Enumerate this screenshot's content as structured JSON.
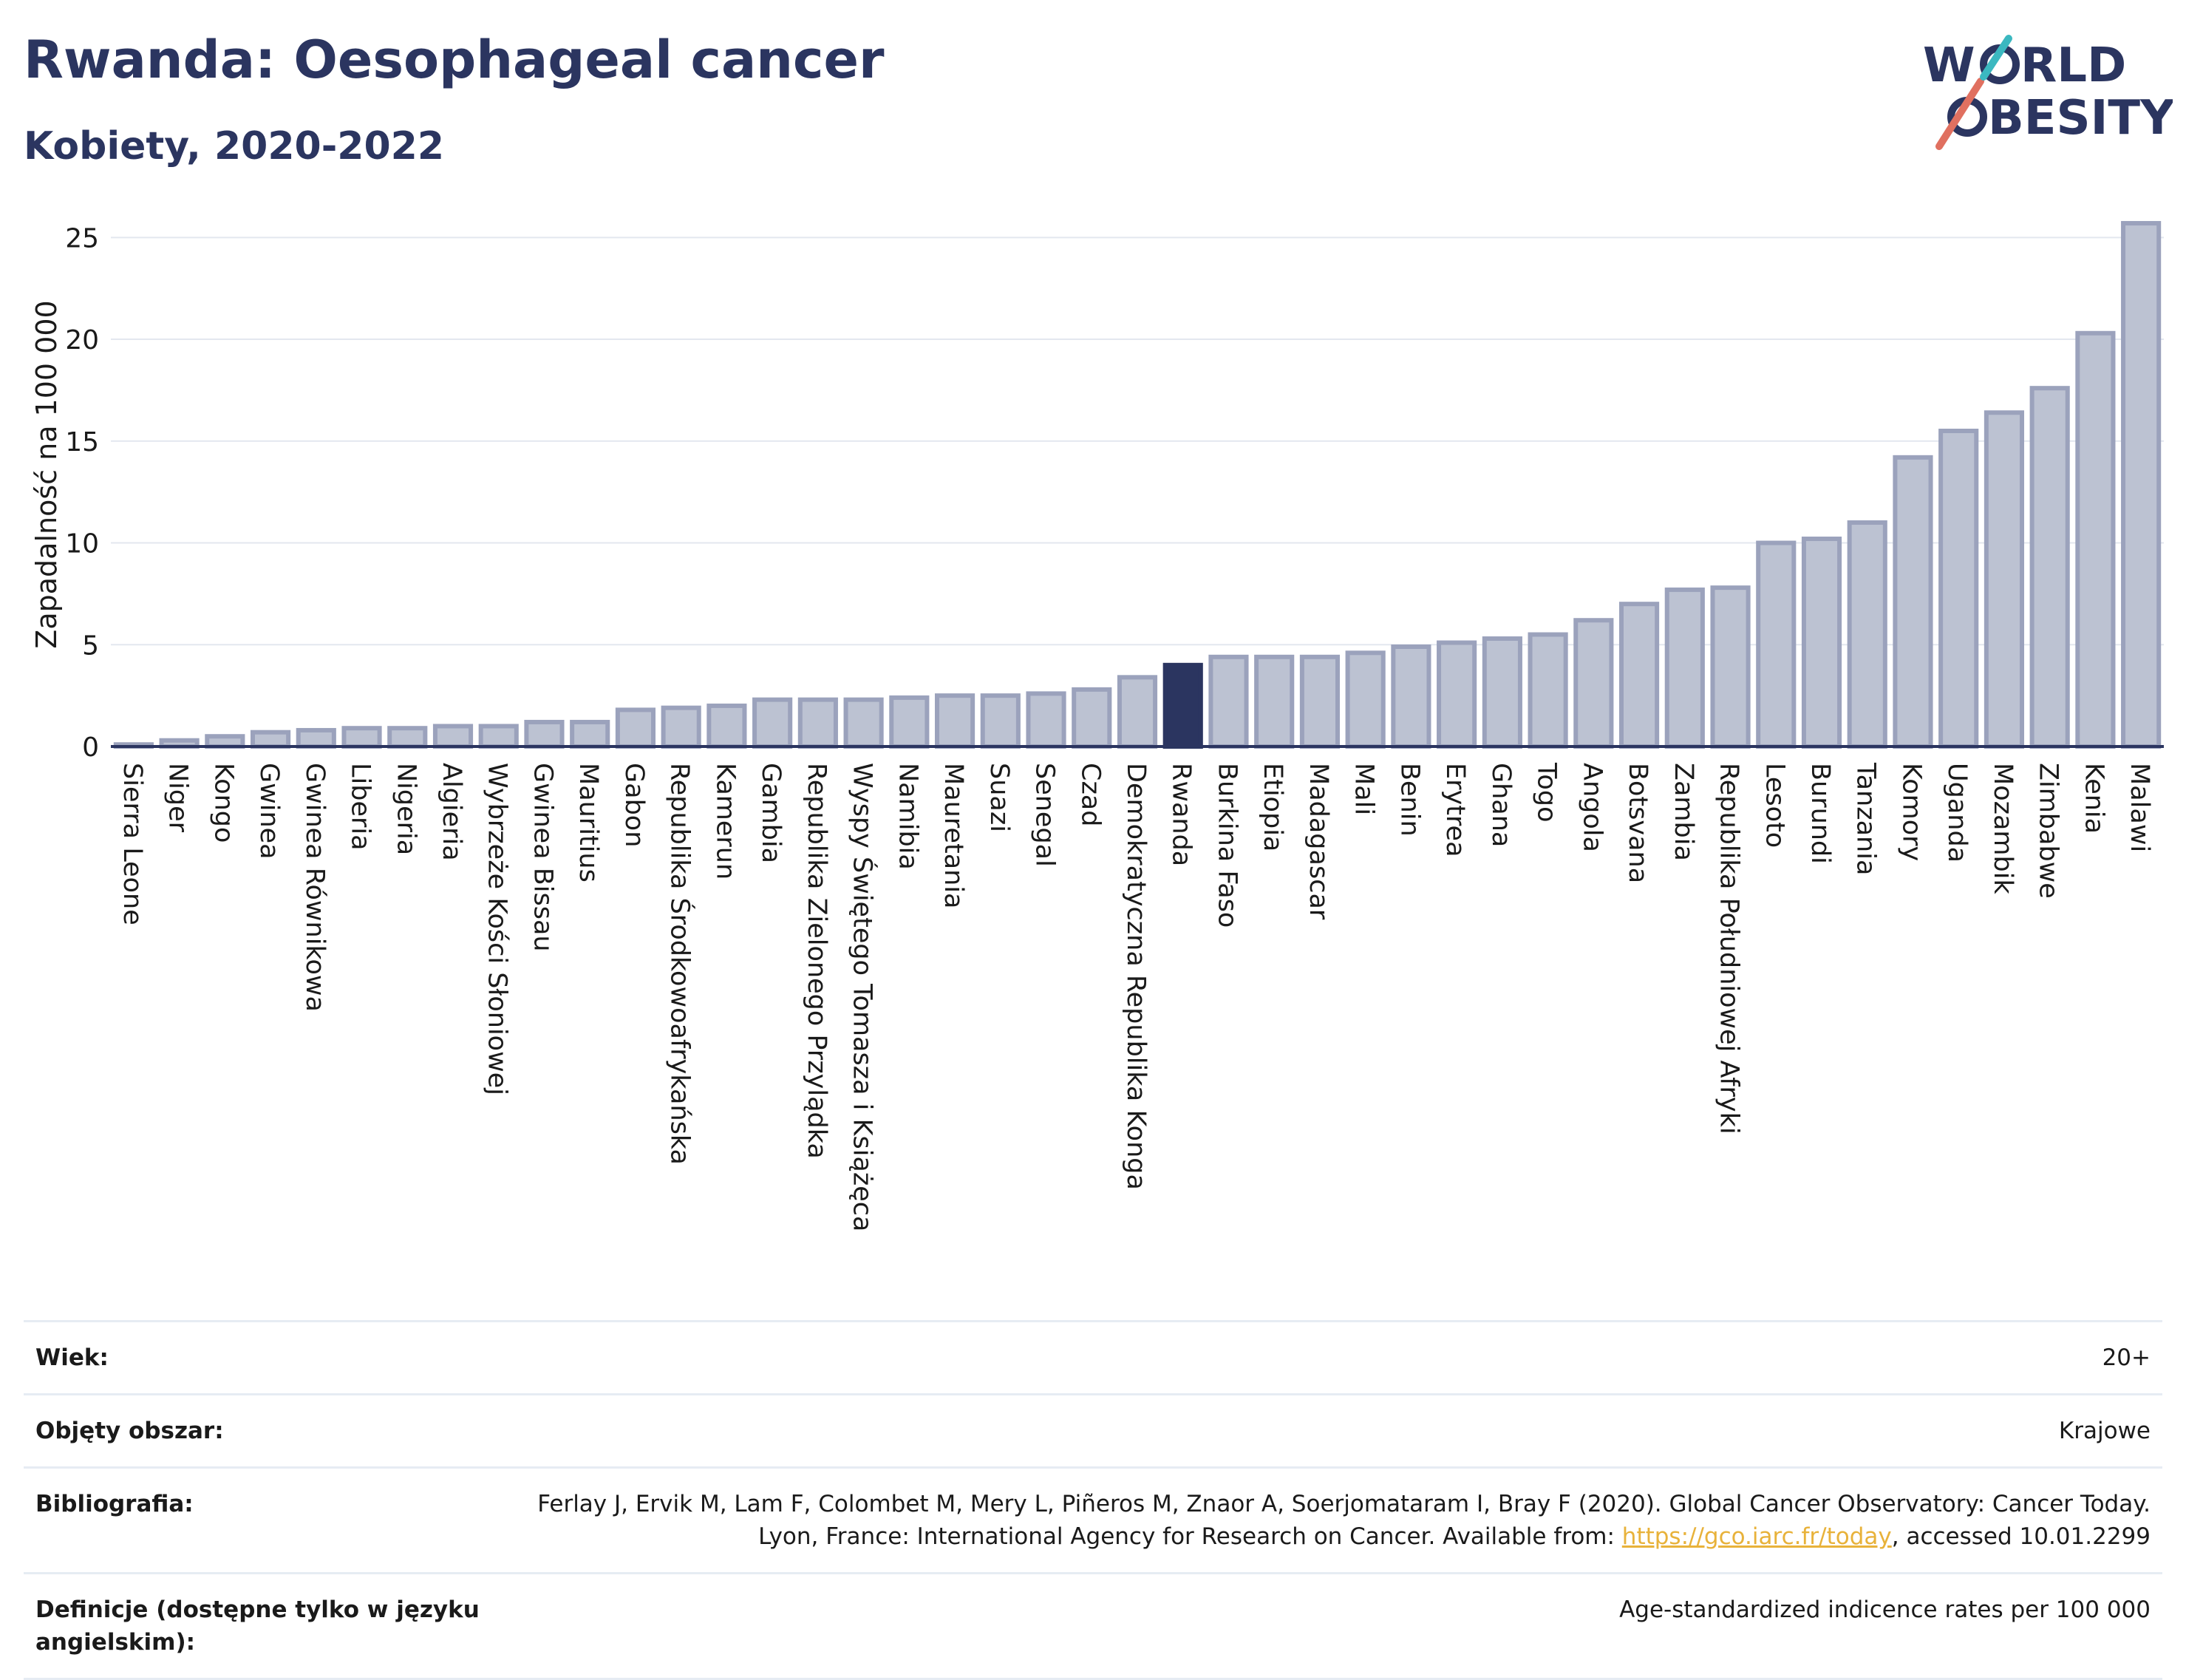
{
  "header": {
    "title": "Rwanda: Oesophageal cancer",
    "subtitle": "Kobiety, 2020-2022",
    "logo_text": "WORLD OBESITY"
  },
  "chart_data": {
    "type": "bar",
    "ylabel": "Zapadalność na 100 000",
    "xlabel": "",
    "ylim": [
      0,
      26.5
    ],
    "yticks": [
      0,
      5,
      10,
      15,
      20,
      25
    ],
    "grid": true,
    "highlight": "Rwanda",
    "colors": {
      "bar": "#bcc2d2",
      "bar_border": "#9ba2bc",
      "highlight": "#2b3560",
      "grid": "#e3e7ef"
    },
    "categories": [
      "Sierra Leone",
      "Niger",
      "Kongo",
      "Gwinea",
      "Gwinea Równikowa",
      "Liberia",
      "Nigeria",
      "Algieria",
      "Wybrzeże Kości Słoniowej",
      "Gwinea Bissau",
      "Mauritius",
      "Gabon",
      "Republika Środkowoafrykańska",
      "Kamerun",
      "Gambia",
      "Republika Zielonego Przylądka",
      "Wyspy Świętego Tomasza i Książęca",
      "Namibia",
      "Mauretania",
      "Suazi",
      "Senegal",
      "Czad",
      "Demokratyczna Republika Konga",
      "Rwanda",
      "Burkina Faso",
      "Etiopia",
      "Madagascar",
      "Mali",
      "Benin",
      "Erytrea",
      "Ghana",
      "Togo",
      "Angola",
      "Botsvana",
      "Zambia",
      "Republika Południowej Afryki",
      "Lesoto",
      "Burundi",
      "Tanzania",
      "Komory",
      "Uganda",
      "Mozambik",
      "Zimbabwe",
      "Kenia",
      "Malawi"
    ],
    "values": [
      0.1,
      0.3,
      0.5,
      0.7,
      0.8,
      0.9,
      0.9,
      1.0,
      1.0,
      1.2,
      1.2,
      1.8,
      1.9,
      2.0,
      2.3,
      2.3,
      2.3,
      2.4,
      2.5,
      2.5,
      2.6,
      2.8,
      3.4,
      4.0,
      4.4,
      4.4,
      4.4,
      4.6,
      4.9,
      5.1,
      5.3,
      5.5,
      6.2,
      7.0,
      7.7,
      7.8,
      10.0,
      10.2,
      11.0,
      14.2,
      15.5,
      16.4,
      17.6,
      20.3,
      25.7
    ]
  },
  "meta": [
    {
      "key": "Wiek:",
      "value": "20+"
    },
    {
      "key": "Objęty obszar:",
      "value": "Krajowe"
    },
    {
      "key": "Bibliografia:",
      "value_pre": "Ferlay J, Ervik M, Lam F, Colombet M, Mery L, Piñeros M, Znaor A, Soerjomataram I, Bray F (2020). Global Cancer Observatory: Cancer Today. Lyon, France: International Agency for Research on Cancer. Available from: ",
      "link": "https://gco.iarc.fr/today",
      "value_post": ", accessed 10.01.2299"
    },
    {
      "key": "Definicje (dostępne tylko w języku angielskim):",
      "value": "Age-standardized indicence rates per 100 000"
    }
  ]
}
